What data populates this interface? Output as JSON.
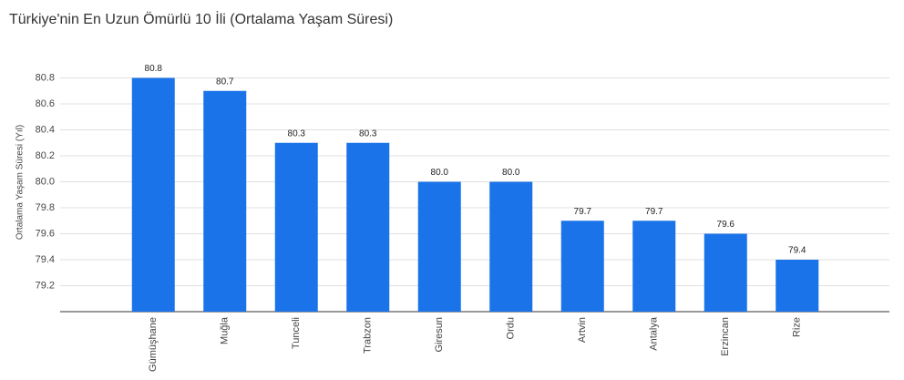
{
  "chart_data": {
    "type": "bar",
    "title": "Türkiye'nin En Uzun Ömürlü 10 İli (Ortalama Yaşam Süresi)",
    "y_label": "Ortalama Yaşam Süresi (Yıl)",
    "categories": [
      "Gümüşhane",
      "Muğla",
      "Tunceli",
      "Trabzon",
      "Giresun",
      "Ordu",
      "Artvin",
      "Antalya",
      "Erzincan",
      "Rize"
    ],
    "values": [
      80.8,
      80.7,
      80.3,
      80.3,
      80.0,
      80.0,
      79.7,
      79.7,
      79.6,
      79.4
    ],
    "value_labels": [
      "80.8",
      "80.7",
      "80.3",
      "80.3",
      "80.0",
      "80.0",
      "79.7",
      "79.7",
      "79.6",
      "79.4"
    ],
    "color": "#1a73e8",
    "ylim": [
      79.0,
      81.0
    ],
    "yticks": [
      79.2,
      79.4,
      79.6,
      79.8,
      {
        "value": 80,
        "label": "80.0"
      },
      80.2,
      80.4,
      80.6,
      80.8
    ],
    "grid": true
  }
}
